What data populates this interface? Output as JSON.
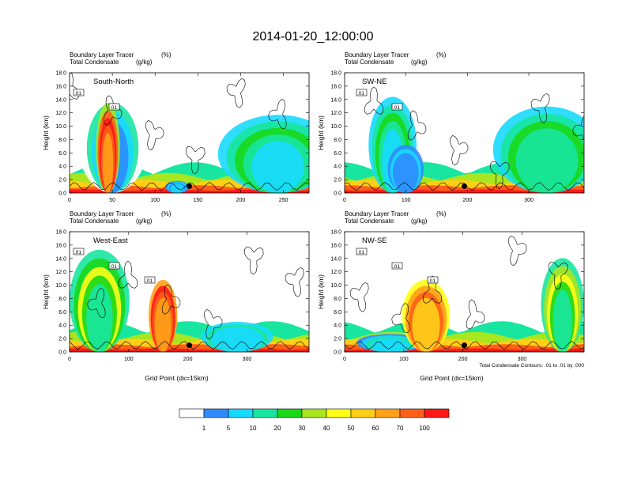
{
  "title": "2014-01-20_12:00:00",
  "colors": [
    "#ffffff",
    "#2f8cff",
    "#18d9ff",
    "#18e6a0",
    "#18d818",
    "#a8e620",
    "#ffff18",
    "#ffcf18",
    "#ffa018",
    "#ff5f18",
    "#ff1818"
  ],
  "chart_data": [
    {
      "type": "heatmap",
      "name": "South-North",
      "label_line1": "Boundary Layer Tracer",
      "unit1": "(%)",
      "label_line2": "Total Condensate",
      "unit2": "(g/kg)",
      "ylabel": "Height (km)",
      "xlabel": "",
      "xlim": [
        0,
        280
      ],
      "ylim": [
        0,
        18
      ],
      "xticks": [
        "0",
        "50",
        "100",
        "150",
        "200",
        "250"
      ],
      "yticks": [
        "0.0",
        "2.0",
        "4.0",
        "6.0",
        "8.0",
        "10.0",
        "12.0",
        "14.0",
        "16.0",
        "18.0"
      ],
      "contour_labels": [
        ".01",
        ".01"
      ]
    },
    {
      "type": "heatmap",
      "name": "SW-NE",
      "label_line1": "Boundary Layer Tracer",
      "unit1": "(%)",
      "label_line2": "Total Condensate",
      "unit2": "(g/kg)",
      "ylabel": "Height (km)",
      "xlabel": "",
      "xlim": [
        0,
        390
      ],
      "ylim": [
        0,
        18
      ],
      "xticks": [
        "0",
        "100",
        "200",
        "300"
      ],
      "yticks": [
        "0.0",
        "2.0",
        "4.0",
        "6.0",
        "8.0",
        "10.0",
        "12.0",
        "14.0",
        "16.0",
        "18.0"
      ],
      "contour_labels": [
        ".01",
        ".01"
      ]
    },
    {
      "type": "heatmap",
      "name": "West-East",
      "label_line1": "Boundary Layer Tracer",
      "unit1": "(%)",
      "label_line2": "Total Condensate",
      "unit2": "(g/kg)",
      "ylabel": "Height (km)",
      "xlabel": "Grid Point (dx=15km)",
      "xlim": [
        0,
        405
      ],
      "ylim": [
        0,
        18
      ],
      "xticks": [
        "0",
        "100",
        "200",
        "300"
      ],
      "yticks": [
        "0.0",
        "2.0",
        "4.0",
        "6.0",
        "8.0",
        "10.0",
        "12.0",
        "14.0",
        "16.0",
        "18.0"
      ],
      "contour_labels": [
        ".01",
        ".01",
        ".01"
      ]
    },
    {
      "type": "heatmap",
      "name": "NW-SE",
      "label_line1": "Boundary Layer Tracer",
      "unit1": "(%)",
      "label_line2": "Total Condensate",
      "unit2": "(g/kg)",
      "ylabel": "Height (km)",
      "xlabel": "Grid Point (dx=15km)",
      "xlim": [
        0,
        405
      ],
      "ylim": [
        0,
        18
      ],
      "xticks": [
        "0",
        "100",
        "200",
        "300"
      ],
      "yticks": [
        "0.0",
        "2.0",
        "4.0",
        "6.0",
        "8.0",
        "10.0",
        "12.0",
        "14.0",
        "16.0",
        "18.0"
      ],
      "contour_labels": [
        ".01",
        ".01",
        ".01"
      ],
      "footnote": "Total Condensate Contours: .01 to .01 by .000"
    }
  ],
  "colorbar": {
    "levels": [
      "1",
      "5",
      "10",
      "20",
      "30",
      "40",
      "50",
      "60",
      "70",
      "100"
    ]
  }
}
